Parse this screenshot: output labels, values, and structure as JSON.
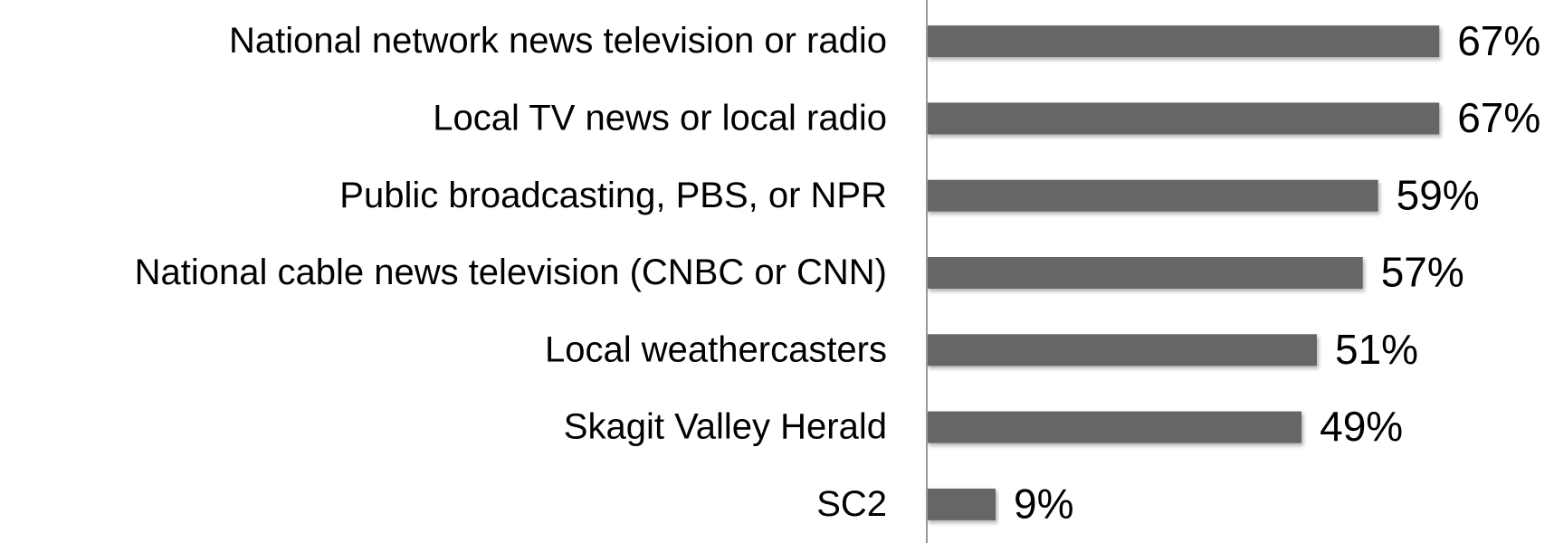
{
  "chart_data": {
    "type": "bar",
    "orientation": "horizontal",
    "categories": [
      "National network news television or radio",
      "Local TV news or local radio",
      "Public broadcasting, PBS, or NPR",
      "National cable news television (CNBC or CNN)",
      "Local weathercasters",
      "Skagit Valley Herald",
      "SC2"
    ],
    "values": [
      67,
      67,
      59,
      57,
      51,
      49,
      9
    ],
    "value_labels": [
      "67%",
      "67%",
      "59%",
      "57%",
      "51%",
      "49%",
      "9%"
    ],
    "color": "#666666",
    "xlim": [
      0,
      82
    ]
  }
}
